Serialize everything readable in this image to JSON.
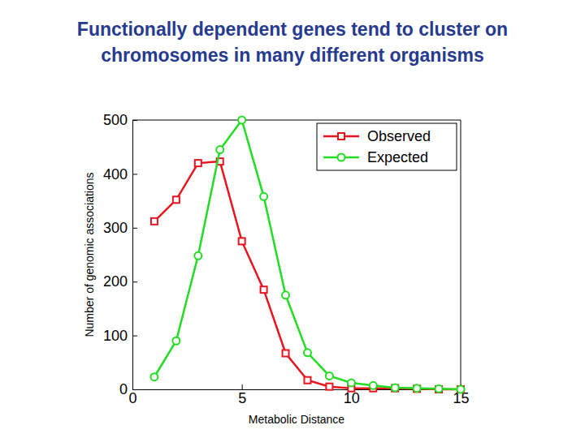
{
  "chart_data": {
    "type": "line",
    "title": "Functionally dependent genes tend to cluster on chromosomes in many different organisms",
    "x_label": "Metabolic Distance",
    "y_label": "Number of genomic associations",
    "x": [
      1,
      2,
      3,
      4,
      5,
      6,
      7,
      8,
      9,
      10,
      11,
      12,
      13,
      14,
      15
    ],
    "series": [
      {
        "name": "Observed",
        "color": "#e8141e",
        "marker": "square",
        "line_style": "solid",
        "values": [
          312,
          352,
          420,
          423,
          275,
          185,
          67,
          17,
          5,
          2,
          2,
          2,
          1,
          0,
          0
        ]
      },
      {
        "name": "Expected",
        "color": "#22dd22",
        "marker": "circle",
        "line_style": "solid",
        "values": [
          23,
          90,
          248,
          445,
          500,
          358,
          175,
          68,
          25,
          12,
          7,
          3,
          2,
          1,
          0
        ]
      }
    ],
    "xlim": [
      0,
      15
    ],
    "xticks": [
      0,
      5,
      10,
      15
    ],
    "ylim": [
      0,
      500
    ],
    "yticks": [
      0,
      100,
      200,
      300,
      400,
      500
    ],
    "legend": "northeast",
    "grid": false
  }
}
